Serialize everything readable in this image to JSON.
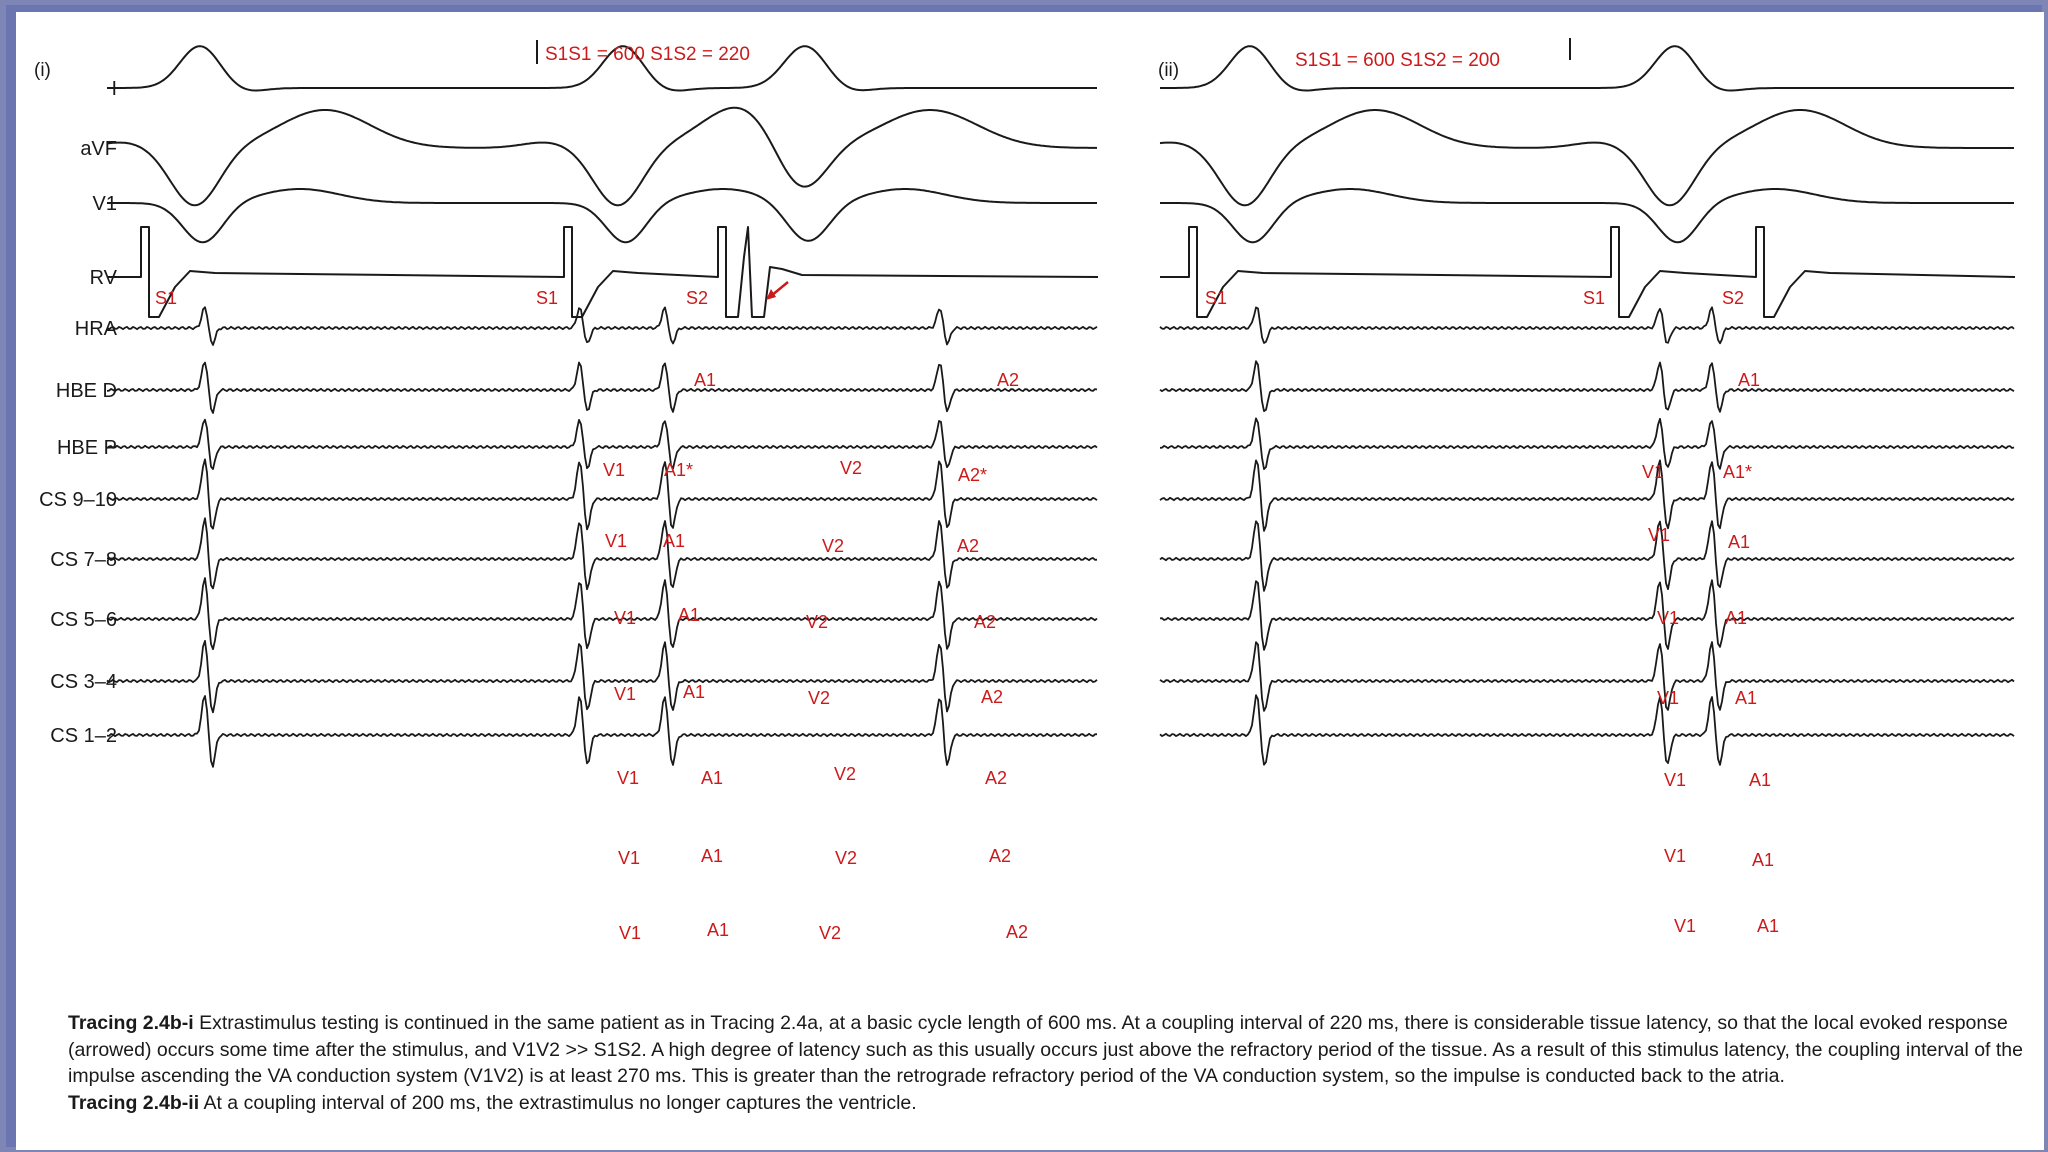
{
  "panels": [
    {
      "label": "(i)",
      "header": "S1S1 = 600     S1S2 = 220"
    },
    {
      "label": "(ii)",
      "header": "S1S1 = 600   S1S2 = 200"
    }
  ],
  "channels": [
    "I",
    "aVF",
    "V1",
    "RV",
    "HRA",
    "HBE D",
    "HBE P",
    "CS 9–10",
    "CS 7–8",
    "CS 5–6",
    "CS 3–4",
    "CS 1–2"
  ],
  "annotations": {
    "S1": "S1",
    "S2": "S2",
    "A1": "A1",
    "A2": "A2",
    "A1star": "A1*",
    "A2star": "A2*",
    "V1": "V1",
    "V2": "V2"
  },
  "caption": {
    "title_i": "Tracing 2.4b-i",
    "text_i": "Extrastimulus testing is continued in the same patient as in Tracing 2.4a, at a basic cycle length of 600 ms. At a coupling interval of 220 ms, there is considerable tissue latency, so that the local evoked response (arrowed) occurs some time after the stimulus, and V1V2 >> S1S2. A high degree of latency such as this usually occurs just above the refractory period of the tissue. As a result of this stimulus latency, the coupling interval of the impulse ascending the VA conduction system (V1V2) is at least 270 ms. This is greater than the retrograde refractory period of the VA conduction system, so the impulse is conducted back to the atria.",
    "title_ii": "Tracing 2.4b-ii",
    "text_ii": "At a coupling interval of 200 ms, the extrastimulus no longer captures the ventricle."
  },
  "colors": {
    "trace": "#1a1a1a",
    "annotation": "#cc1a1a",
    "border": "#6b76b0"
  }
}
